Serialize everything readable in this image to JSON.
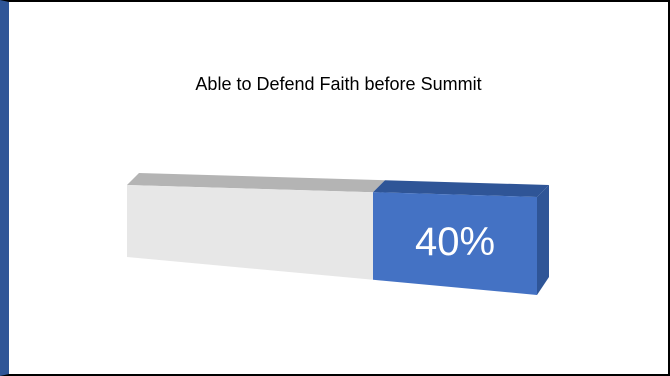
{
  "slide": {
    "title": "Able to Defend Faith before Summit"
  },
  "chart_data": {
    "type": "bar",
    "title": "Able to Defend Faith before Summit",
    "values": [
      40
    ],
    "value_label": "40%",
    "ylim": [
      0,
      100
    ],
    "colors": {
      "filled": "#4472c4",
      "filled_top": "#2f5597",
      "filled_side": "#2f5597",
      "empty": "#e7e7e7",
      "empty_top": "#b4b4b4"
    }
  }
}
